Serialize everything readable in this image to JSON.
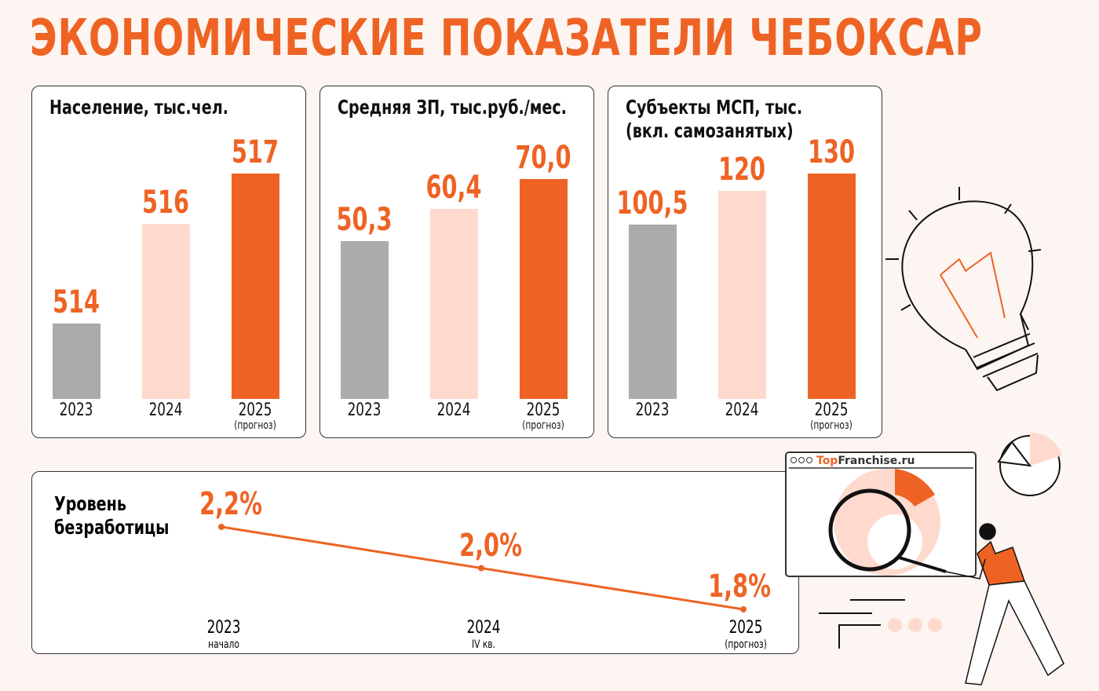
{
  "title": "ЭКОНОМИЧЕСКИЕ ПОКАЗАТЕЛИ ЧЕБОКСАР",
  "colors": {
    "accent": "#ee6324",
    "gray": "#ababab",
    "peach": "#fddacd",
    "background": "#fdf5f1"
  },
  "chart_data": [
    {
      "type": "bar",
      "title": "Население, тыс.чел.",
      "categories": [
        "2023",
        "2024",
        "2025"
      ],
      "sublabels": [
        "",
        "",
        "(прогноз)"
      ],
      "values": [
        514,
        516,
        517
      ],
      "value_labels": [
        "514",
        "516",
        "517"
      ],
      "bar_colors": [
        "#ababab",
        "#fddacd",
        "#ee6324"
      ],
      "ylim": [
        512.5,
        517.2
      ]
    },
    {
      "type": "bar",
      "title": "Средняя ЗП, тыс.руб./мес.",
      "categories": [
        "2023",
        "2024",
        "2025"
      ],
      "sublabels": [
        "",
        "",
        "(прогноз)"
      ],
      "values": [
        50.3,
        60.4,
        70.0
      ],
      "value_labels": [
        "50,3",
        "60,4",
        "70,0"
      ],
      "bar_colors": [
        "#ababab",
        "#fddacd",
        "#ee6324"
      ],
      "ylim": [
        0,
        75
      ]
    },
    {
      "type": "bar",
      "title": "Субъекты МСП, тыс. (вкл. самозанятых)",
      "title_lines": [
        "Субъекты МСП, тыс.",
        "(вкл. самозанятых)"
      ],
      "categories": [
        "2023",
        "2024",
        "2025"
      ],
      "sublabels": [
        "",
        "",
        "(прогноз)"
      ],
      "values": [
        100.5,
        120,
        130
      ],
      "value_labels": [
        "100,5",
        "120",
        "130"
      ],
      "bar_colors": [
        "#ababab",
        "#fddacd",
        "#ee6324"
      ],
      "ylim": [
        0,
        136
      ]
    },
    {
      "type": "line",
      "title_lines": [
        "Уровень",
        "безработицы"
      ],
      "categories": [
        "2023",
        "2024",
        "2025"
      ],
      "sublabels": [
        "начало",
        "IV кв.",
        "(прогноз)"
      ],
      "values": [
        2.2,
        2.0,
        1.8
      ],
      "value_labels": [
        "2,2%",
        "2,0%",
        "1,8%"
      ],
      "color": "#ee6324"
    }
  ],
  "illustration": {
    "logo_text": "TopFranchise.ru"
  }
}
